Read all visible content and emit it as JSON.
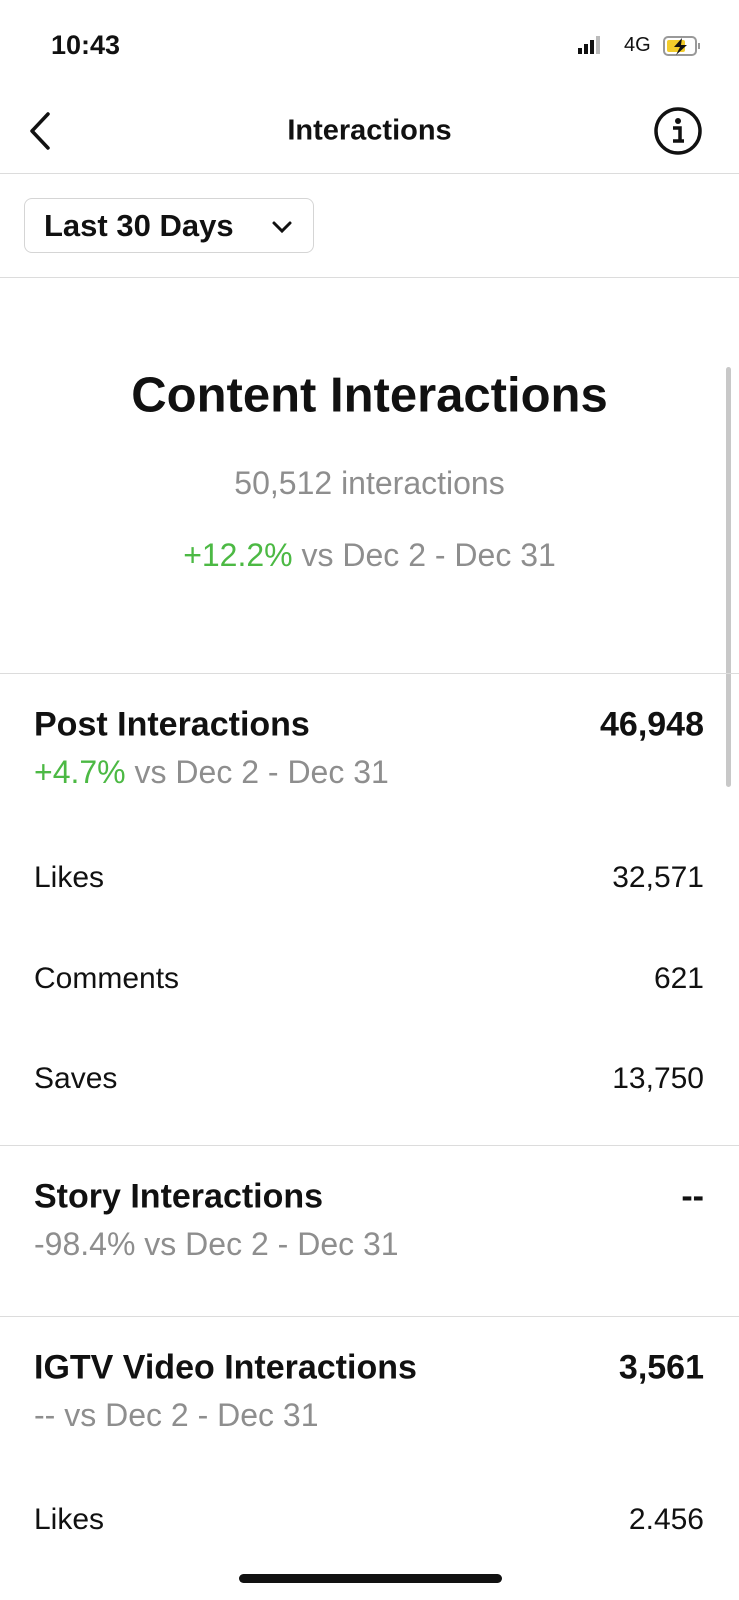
{
  "status_bar": {
    "time": "10:43",
    "network": "4G"
  },
  "header": {
    "title": "Interactions"
  },
  "filter": {
    "label": "Last 30 Days"
  },
  "summary": {
    "title": "Content Interactions",
    "total": "50,512 interactions",
    "change": "+12.2%",
    "comparison": "vs Dec 2 - Dec 31"
  },
  "sections": [
    {
      "title": "Post Interactions",
      "value": "46,948",
      "change": "+4.7%",
      "comparison": "vs Dec 2 - Dec 31",
      "rows": [
        {
          "label": "Likes",
          "value": "32,571"
        },
        {
          "label": "Comments",
          "value": "621"
        },
        {
          "label": "Saves",
          "value": "13,750"
        }
      ]
    },
    {
      "title": "Story Interactions",
      "value": "--",
      "change": "-98.4%",
      "comparison": "vs Dec 2 - Dec 31"
    },
    {
      "title": "IGTV Video Interactions",
      "value": "3,561",
      "change": "--",
      "comparison": "vs Dec 2 - Dec 31",
      "rows": [
        {
          "label": "Likes",
          "value": "2.456"
        }
      ]
    }
  ]
}
